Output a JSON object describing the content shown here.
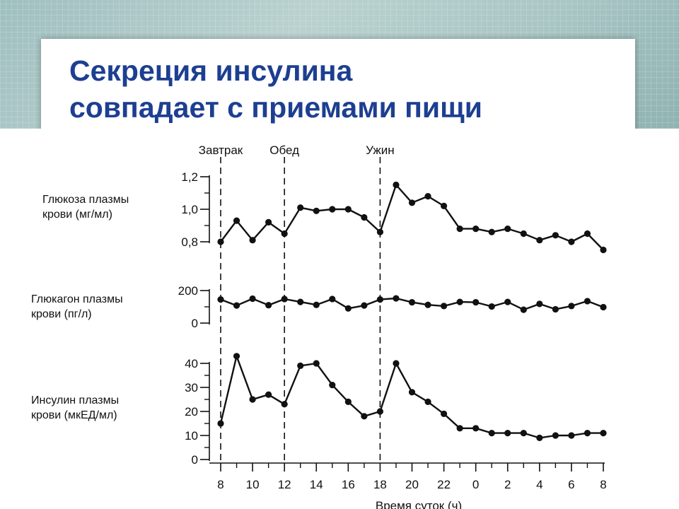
{
  "title": {
    "line1": "Секреция инсулина",
    "line2": "совпадает с приемами пищи"
  },
  "chart_data": {
    "type": "line",
    "xlabel": "Время суток (ч)",
    "x_ticks": [
      "8",
      "10",
      "12",
      "14",
      "16",
      "18",
      "20",
      "22",
      "0",
      "2",
      "4",
      "6",
      "8"
    ],
    "events": [
      {
        "label": "Завтрак",
        "x": 8
      },
      {
        "label": "Обед",
        "x": 12
      },
      {
        "label": "Ужин",
        "x": 18
      }
    ],
    "panels": [
      {
        "name": "glucose",
        "label": [
          "Глюкоза плазмы",
          "крови (мг/мл)"
        ],
        "ylim": [
          0.8,
          1.2
        ],
        "y_ticks": [
          {
            "v": 0.8,
            "t": "0,8"
          },
          {
            "v": 1.0,
            "t": "1,0"
          },
          {
            "v": 1.2,
            "t": "1,2"
          }
        ],
        "points": [
          [
            8,
            0.8
          ],
          [
            9,
            0.93
          ],
          [
            10,
            0.81
          ],
          [
            11,
            0.92
          ],
          [
            12,
            0.85
          ],
          [
            13,
            1.01
          ],
          [
            14,
            0.99
          ],
          [
            15,
            1.0
          ],
          [
            16,
            1.0
          ],
          [
            17,
            0.95
          ],
          [
            18,
            0.86
          ],
          [
            19,
            1.15
          ],
          [
            20,
            1.04
          ],
          [
            21,
            1.08
          ],
          [
            22,
            1.02
          ],
          [
            23,
            0.88
          ],
          [
            24,
            0.88
          ],
          [
            25,
            0.86
          ],
          [
            26,
            0.88
          ],
          [
            27,
            0.85
          ],
          [
            28,
            0.81
          ],
          [
            29,
            0.84
          ],
          [
            30,
            0.8
          ],
          [
            31,
            0.85
          ],
          [
            32,
            0.75
          ]
        ]
      },
      {
        "name": "glucagon",
        "label": [
          "Глюкагон плазмы",
          "крови (пг/л)"
        ],
        "ylim": [
          0,
          200
        ],
        "y_ticks": [
          {
            "v": 0,
            "t": "0"
          },
          {
            "v": 200,
            "t": "200"
          }
        ],
        "points": [
          [
            8,
            145
          ],
          [
            9,
            108
          ],
          [
            10,
            150
          ],
          [
            11,
            110
          ],
          [
            12,
            148
          ],
          [
            13,
            130
          ],
          [
            14,
            112
          ],
          [
            15,
            148
          ],
          [
            16,
            90
          ],
          [
            17,
            108
          ],
          [
            18,
            145
          ],
          [
            19,
            152
          ],
          [
            20,
            128
          ],
          [
            21,
            112
          ],
          [
            22,
            105
          ],
          [
            23,
            130
          ],
          [
            24,
            128
          ],
          [
            25,
            102
          ],
          [
            26,
            130
          ],
          [
            27,
            82
          ],
          [
            28,
            118
          ],
          [
            29,
            85
          ],
          [
            30,
            105
          ],
          [
            31,
            135
          ],
          [
            32,
            98
          ]
        ]
      },
      {
        "name": "insulin",
        "label": [
          "Инсулин плазмы",
          "крови (мкЕД/мл)"
        ],
        "ylim": [
          0,
          40
        ],
        "y_ticks": [
          {
            "v": 0,
            "t": "0"
          },
          {
            "v": 10,
            "t": "10"
          },
          {
            "v": 20,
            "t": "20"
          },
          {
            "v": 30,
            "t": "30"
          },
          {
            "v": 40,
            "t": "40"
          }
        ],
        "points": [
          [
            8,
            15
          ],
          [
            9,
            43
          ],
          [
            10,
            25
          ],
          [
            11,
            27
          ],
          [
            12,
            23
          ],
          [
            13,
            39
          ],
          [
            14,
            40
          ],
          [
            15,
            31
          ],
          [
            16,
            24
          ],
          [
            17,
            18
          ],
          [
            18,
            20
          ],
          [
            19,
            40
          ],
          [
            20,
            28
          ],
          [
            21,
            24
          ],
          [
            22,
            19
          ],
          [
            23,
            13
          ],
          [
            24,
            13
          ],
          [
            25,
            11
          ],
          [
            26,
            11
          ],
          [
            27,
            11
          ],
          [
            28,
            9
          ],
          [
            29,
            10
          ],
          [
            30,
            10
          ],
          [
            31,
            11
          ],
          [
            32,
            11
          ]
        ]
      }
    ]
  }
}
